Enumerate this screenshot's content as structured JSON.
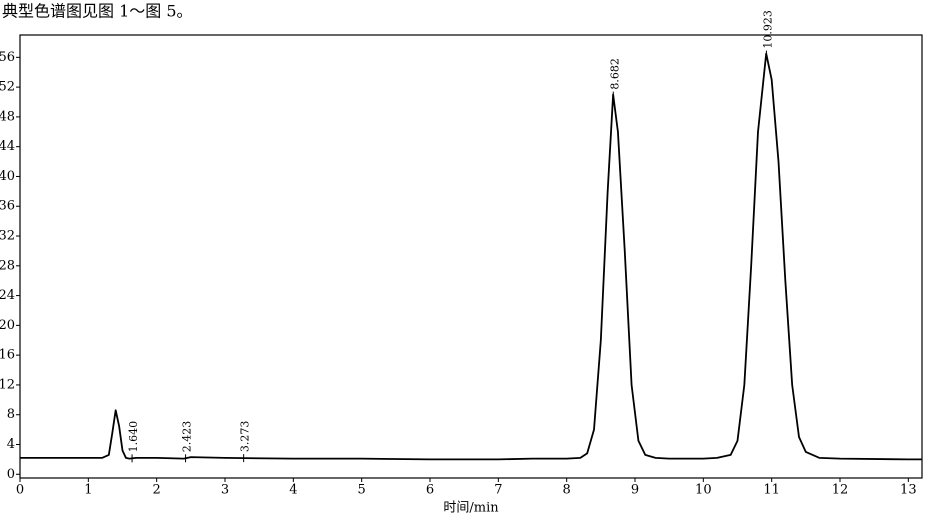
{
  "heading": "典型色谱图见图 1～图 5。",
  "chart_data": {
    "type": "line",
    "x_label": "时间/min",
    "x": [
      0,
      1.2,
      1.3,
      1.35,
      1.4,
      1.45,
      1.5,
      1.55,
      1.6,
      1.7,
      2,
      2.4,
      2.5,
      3,
      4,
      5,
      6,
      7,
      7.5,
      8,
      8.2,
      8.3,
      8.4,
      8.5,
      8.6,
      8.68,
      8.75,
      8.85,
      8.95,
      9.05,
      9.15,
      9.3,
      9.5,
      10,
      10.2,
      10.4,
      10.5,
      10.6,
      10.7,
      10.8,
      10.92,
      11.0,
      11.1,
      11.2,
      11.3,
      11.4,
      11.5,
      11.7,
      12,
      13,
      13.2
    ],
    "series": [
      {
        "color": "#000000",
        "values": [
          2.2,
          2.2,
          2.6,
          5.5,
          8.6,
          6.5,
          3.2,
          2.2,
          2.1,
          2.2,
          2.2,
          2.1,
          2.3,
          2.2,
          2.1,
          2.1,
          2.0,
          2.0,
          2.1,
          2.1,
          2.2,
          2.8,
          6,
          18,
          38,
          51,
          46,
          30,
          12,
          4.5,
          2.6,
          2.2,
          2.1,
          2.1,
          2.2,
          2.6,
          4.5,
          12,
          28,
          46,
          56.5,
          53,
          42,
          26,
          12,
          5,
          3,
          2.2,
          2.1,
          2.0,
          2.0
        ]
      }
    ],
    "peaks": [
      {
        "x": 1.64,
        "label": "1.640"
      },
      {
        "x": 2.423,
        "label": "2.423"
      },
      {
        "x": 3.273,
        "label": "3.273"
      },
      {
        "x": 8.682,
        "label": "8.682"
      },
      {
        "x": 10.923,
        "label": "10.923"
      }
    ],
    "xlim": [
      0,
      13.2
    ],
    "ylim": [
      -0.5,
      59
    ],
    "xticks": [
      0,
      1,
      2,
      3,
      4,
      5,
      6,
      7,
      8,
      9,
      10,
      11,
      12,
      13
    ],
    "yticks": [
      0,
      4,
      8,
      12,
      16,
      20,
      24,
      28,
      32,
      36,
      40,
      44,
      48,
      52,
      56
    ]
  }
}
